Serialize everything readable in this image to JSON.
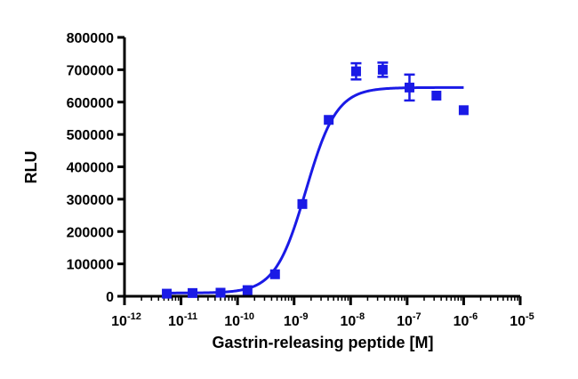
{
  "chart_data": {
    "type": "scatter",
    "title": "",
    "xlabel": "Gastrin-releasing peptide [M]",
    "ylabel": "RLU",
    "x_scale": "log",
    "xlim": [
      1e-12,
      1e-05
    ],
    "ylim": [
      0,
      800000
    ],
    "grid": false,
    "legend": "none",
    "x_ticks": [
      {
        "base": "10",
        "exp": "-12"
      },
      {
        "base": "10",
        "exp": "-11"
      },
      {
        "base": "10",
        "exp": "-10"
      },
      {
        "base": "10",
        "exp": "-9"
      },
      {
        "base": "10",
        "exp": "-8"
      },
      {
        "base": "10",
        "exp": "-7"
      },
      {
        "base": "10",
        "exp": "-6"
      },
      {
        "base": "10",
        "exp": "-5"
      }
    ],
    "y_ticks": [
      "0",
      "100000",
      "200000",
      "300000",
      "400000",
      "500000",
      "600000",
      "700000",
      "800000"
    ],
    "series": [
      {
        "color": "#1a1ae6",
        "points": [
          {
            "x": 5.6e-12,
            "y": 8000,
            "err": 0
          },
          {
            "x": 1.6e-11,
            "y": 10000,
            "err": 0
          },
          {
            "x": 5e-11,
            "y": 11000,
            "err": 0
          },
          {
            "x": 1.5e-10,
            "y": 19000,
            "err": 0
          },
          {
            "x": 4.6e-10,
            "y": 68000,
            "err": 0
          },
          {
            "x": 1.4e-09,
            "y": 285000,
            "err": 0
          },
          {
            "x": 4.1e-09,
            "y": 545000,
            "err": 0
          },
          {
            "x": 1.25e-08,
            "y": 695000,
            "err": 25000
          },
          {
            "x": 3.7e-08,
            "y": 700000,
            "err": 22000
          },
          {
            "x": 1.1e-07,
            "y": 645000,
            "err": 40000
          },
          {
            "x": 3.3e-07,
            "y": 620000,
            "err": 0
          },
          {
            "x": 1e-06,
            "y": 575000,
            "err": 0
          }
        ],
        "fit": {
          "bottom": 10000,
          "top": 645000,
          "log_ec50": -8.79,
          "hill": 1.6,
          "x_range": [
            5.6e-12,
            1e-06
          ]
        }
      }
    ]
  }
}
